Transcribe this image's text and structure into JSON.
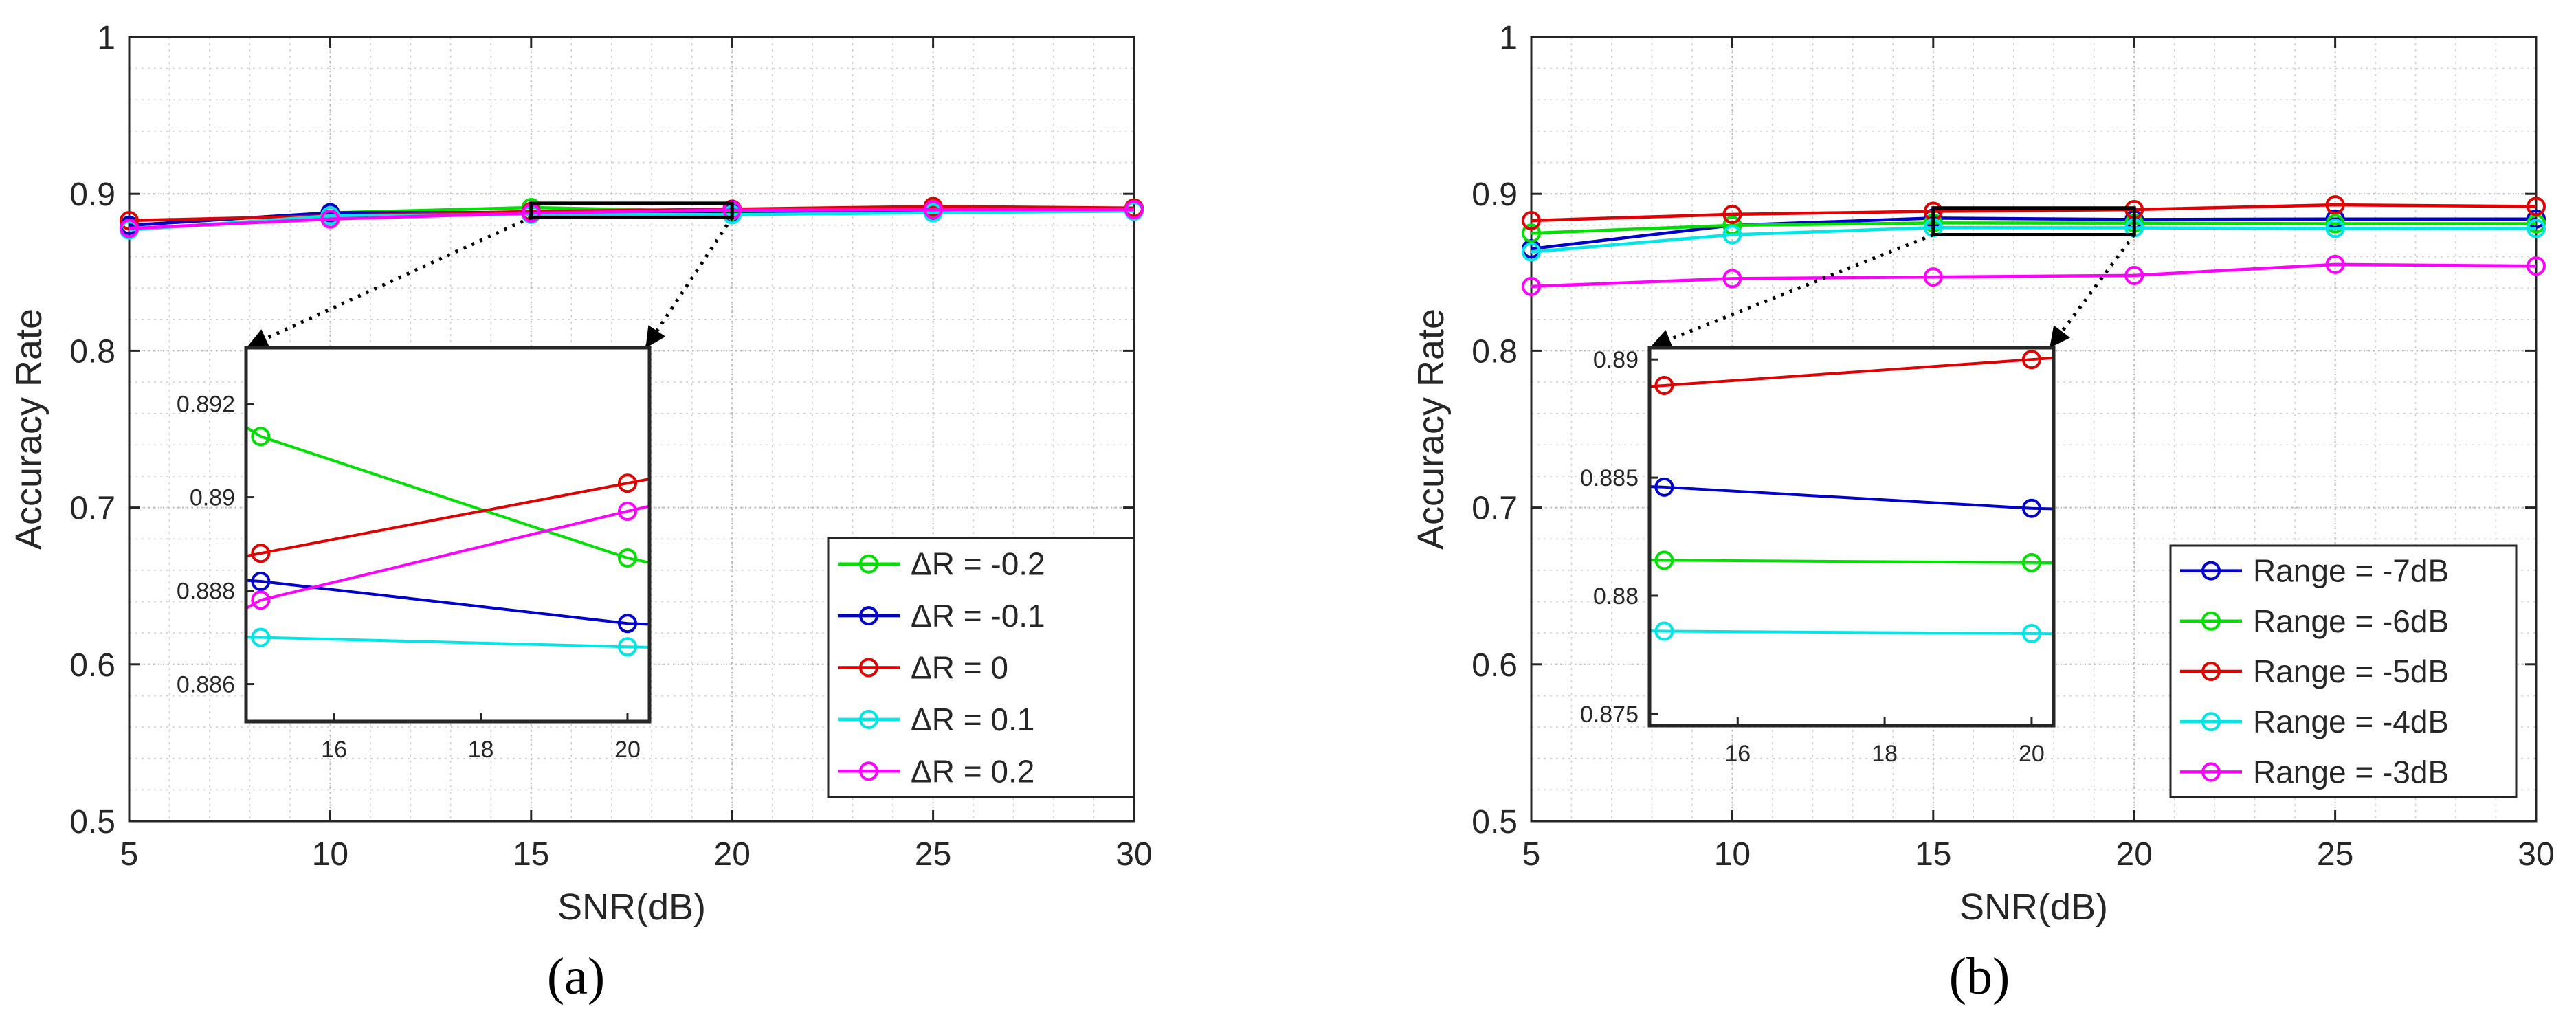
{
  "panels": [
    {
      "label": "(a)",
      "chart_data": {
        "type": "line",
        "title": "",
        "xlabel": "SNR(dB)",
        "ylabel": "Accuracy Rate",
        "xlim": [
          5,
          30
        ],
        "ylim": [
          0.5,
          1
        ],
        "x": [
          5,
          10,
          15,
          20,
          25,
          30
        ],
        "xticks": [
          5,
          10,
          15,
          20,
          25,
          30
        ],
        "yticks": [
          0.5,
          0.6,
          0.7,
          0.8,
          0.9,
          1
        ],
        "grid": true,
        "legend_position": "bottom-right",
        "series": [
          {
            "name": "ΔR = -0.2",
            "color": "#00e000",
            "values": [
              0.88,
              0.888,
              0.8913,
              0.8887,
              0.891,
              0.891
            ]
          },
          {
            "name": "ΔR = -0.1",
            "color": "#0000cc",
            "values": [
              0.88,
              0.888,
              0.8882,
              0.8873,
              0.889,
              0.89
            ]
          },
          {
            "name": "ΔR = 0",
            "color": "#e00000",
            "values": [
              0.883,
              0.886,
              0.8888,
              0.8903,
              0.892,
              0.891
            ]
          },
          {
            "name": "ΔR = 0.1",
            "color": "#00e5e5",
            "values": [
              0.877,
              0.886,
              0.887,
              0.8868,
              0.888,
              0.889
            ]
          },
          {
            "name": "ΔR = 0.2",
            "color": "#ff00ff",
            "values": [
              0.878,
              0.884,
              0.8878,
              0.8897,
              0.89,
              0.89
            ]
          }
        ],
        "inset": {
          "xlim": [
            14.8,
            20.3
          ],
          "ylim": [
            0.8852,
            0.8932
          ],
          "xticks": [
            16,
            18,
            20
          ],
          "yticks": [
            0.886,
            0.888,
            0.89,
            0.892
          ],
          "zoom_xlim": [
            15,
            20
          ],
          "zoom_ylim": [
            0.885,
            0.894
          ],
          "series": [
            {
              "name": "ΔR = -0.2",
              "x": [
                14.8,
                15,
                20,
                20.3
              ],
              "values": [
                0.8915,
                0.8913,
                0.8887,
                0.8886
              ]
            },
            {
              "name": "ΔR = -0.1",
              "x": [
                14.8,
                15,
                20,
                20.3
              ],
              "values": [
                0.88822,
                0.8882,
                0.8873,
                0.88728
              ]
            },
            {
              "name": "ΔR = 0",
              "x": [
                14.8,
                15,
                20,
                20.3
              ],
              "values": [
                0.88874,
                0.8888,
                0.8903,
                0.89039
              ]
            },
            {
              "name": "ΔR = 0.1",
              "x": [
                14.8,
                15,
                20,
                20.3
              ],
              "values": [
                0.88701,
                0.887,
                0.8868,
                0.88679
              ]
            },
            {
              "name": "ΔR = 0.2",
              "x": [
                14.8,
                15,
                20,
                20.3
              ],
              "values": [
                0.88762,
                0.8878,
                0.8897,
                0.88981
              ]
            }
          ]
        }
      }
    },
    {
      "label": "(b)",
      "chart_data": {
        "type": "line",
        "title": "",
        "xlabel": "SNR(dB)",
        "ylabel": "Accuracy Rate",
        "xlim": [
          5,
          30
        ],
        "ylim": [
          0.5,
          1
        ],
        "x": [
          5,
          10,
          15,
          20,
          25,
          30
        ],
        "xticks": [
          5,
          10,
          15,
          20,
          25,
          30
        ],
        "yticks": [
          0.5,
          0.6,
          0.7,
          0.8,
          0.9,
          1
        ],
        "grid": true,
        "legend_position": "bottom-right",
        "series": [
          {
            "name": "Range = -7dB",
            "color": "#0000cc",
            "values": [
              0.865,
              0.88,
              0.8846,
              0.8837,
              0.884,
              0.884
            ]
          },
          {
            "name": "Range = -6dB",
            "color": "#00e000",
            "values": [
              0.875,
              0.88,
              0.8815,
              0.8814,
              0.881,
              0.881
            ]
          },
          {
            "name": "Range = -5dB",
            "color": "#e00000",
            "values": [
              0.883,
              0.887,
              0.8889,
              0.89,
              0.893,
              0.892
            ]
          },
          {
            "name": "Range = -4dB",
            "color": "#00e5e5",
            "values": [
              0.863,
              0.874,
              0.8785,
              0.8784,
              0.878,
              0.878
            ]
          },
          {
            "name": "Range = -3dB",
            "color": "#ff00ff",
            "values": [
              0.841,
              0.846,
              0.847,
              0.848,
              0.855,
              0.854
            ]
          }
        ],
        "inset": {
          "xlim": [
            14.8,
            20.3
          ],
          "ylim": [
            0.8745,
            0.8905
          ],
          "xticks": [
            16,
            18,
            20
          ],
          "yticks": [
            0.875,
            0.88,
            0.885,
            0.89
          ],
          "zoom_xlim": [
            15,
            20
          ],
          "zoom_ylim": [
            0.874,
            0.891
          ],
          "series": [
            {
              "name": "Range = -7dB",
              "x": [
                14.8,
                15,
                20,
                20.3
              ],
              "values": [
                0.88462,
                0.8846,
                0.8837,
                0.88368
              ]
            },
            {
              "name": "Range = -6dB",
              "x": [
                14.8,
                15,
                20,
                20.3
              ],
              "values": [
                0.88151,
                0.8815,
                0.8814,
                0.88139
              ]
            },
            {
              "name": "Range = -5dB",
              "x": [
                14.8,
                15,
                20,
                20.3
              ],
              "values": [
                0.88886,
                0.8889,
                0.89,
                0.89007
              ]
            },
            {
              "name": "Range = -4dB",
              "x": [
                14.8,
                15,
                20,
                20.3
              ],
              "values": [
                0.87851,
                0.8785,
                0.8784,
                0.87839
              ]
            }
          ]
        }
      }
    }
  ]
}
